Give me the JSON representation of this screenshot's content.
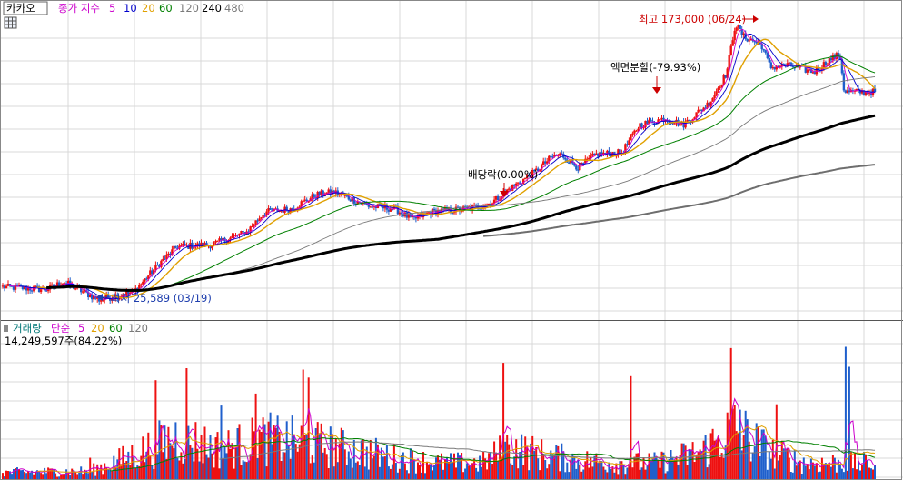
{
  "header": {
    "stock_name": "카카오",
    "indicator_label": "종가 지수",
    "ma_periods": [
      "5",
      "10",
      "20",
      "60",
      "120",
      "240",
      "480"
    ],
    "ma_colors": [
      "#cc00cc",
      "#0000cc",
      "#e0a000",
      "#008000",
      "#7a7a7a",
      "#000000",
      "#6e6e6e"
    ]
  },
  "volume_header": {
    "label": "거래량",
    "indicator_label": "단순",
    "ma_periods": [
      "5",
      "20",
      "60",
      "120"
    ],
    "ma_colors": [
      "#cc00cc",
      "#e0a000",
      "#008000",
      "#7a7a7a"
    ],
    "volume_text": "14,249,597주(84.22%)"
  },
  "annotations": {
    "high": "최고 173,000 (06/24)",
    "low": "최저 25,589 (03/19)",
    "split": "액면분할(-79.93%)",
    "dividend": "배당락(0.00%)"
  },
  "colors": {
    "up": "#ee1111",
    "down": "#1f5fcc",
    "grid": "#d9d9d9",
    "annotation_high": "#cc0000",
    "annotation_low": "#1f3fae"
  },
  "chart_data": {
    "type": "candlestick",
    "panels": [
      "price",
      "volume"
    ],
    "price_scale": {
      "log": true,
      "ylim": [
        24000,
        180000
      ]
    },
    "low_point": {
      "value": 25589,
      "date": "03/19"
    },
    "high_point": {
      "value": 173000,
      "date": "06/24"
    },
    "price_path": [
      [
        0,
        28000
      ],
      [
        0.05,
        27500
      ],
      [
        0.07,
        29000
      ],
      [
        0.11,
        25589
      ],
      [
        0.15,
        27000
      ],
      [
        0.18,
        33000
      ],
      [
        0.2,
        37000
      ],
      [
        0.24,
        37500
      ],
      [
        0.28,
        41000
      ],
      [
        0.3,
        47000
      ],
      [
        0.33,
        48000
      ],
      [
        0.36,
        53000
      ],
      [
        0.38,
        54000
      ],
      [
        0.42,
        49000
      ],
      [
        0.45,
        48000
      ],
      [
        0.47,
        44500
      ],
      [
        0.49,
        47000
      ],
      [
        0.53,
        48000
      ],
      [
        0.56,
        50000
      ],
      [
        0.58,
        55000
      ],
      [
        0.61,
        62000
      ],
      [
        0.63,
        69000
      ],
      [
        0.64,
        70000
      ],
      [
        0.66,
        64000
      ],
      [
        0.68,
        70000
      ],
      [
        0.71,
        71000
      ],
      [
        0.73,
        86000
      ],
      [
        0.76,
        90000
      ],
      [
        0.78,
        86000
      ],
      [
        0.81,
        100000
      ],
      [
        0.83,
        123000
      ],
      [
        0.84,
        173000
      ],
      [
        0.85,
        158000
      ],
      [
        0.87,
        150000
      ],
      [
        0.88,
        128000
      ],
      [
        0.9,
        130000
      ],
      [
        0.93,
        124000
      ],
      [
        0.95,
        136000
      ],
      [
        0.96,
        140000
      ],
      [
        0.965,
        108000
      ]
    ],
    "volume_profile": [
      [
        0,
        0.05
      ],
      [
        0.1,
        0.06
      ],
      [
        0.15,
        0.18
      ],
      [
        0.2,
        0.32
      ],
      [
        0.25,
        0.22
      ],
      [
        0.3,
        0.3
      ],
      [
        0.35,
        0.27
      ],
      [
        0.4,
        0.22
      ],
      [
        0.45,
        0.16
      ],
      [
        0.5,
        0.12
      ],
      [
        0.55,
        0.12
      ],
      [
        0.58,
        0.24
      ],
      [
        0.62,
        0.18
      ],
      [
        0.66,
        0.14
      ],
      [
        0.7,
        0.12
      ],
      [
        0.75,
        0.12
      ],
      [
        0.8,
        0.2
      ],
      [
        0.84,
        0.38
      ],
      [
        0.88,
        0.2
      ],
      [
        0.92,
        0.12
      ],
      [
        0.96,
        0.12
      ]
    ],
    "volume_spikes": [
      [
        0.1,
        0.16
      ],
      [
        0.176,
        0.74
      ],
      [
        0.21,
        0.83
      ],
      [
        0.25,
        0.55
      ],
      [
        0.29,
        0.64
      ],
      [
        0.345,
        0.82
      ],
      [
        0.35,
        0.76
      ],
      [
        0.575,
        0.87
      ],
      [
        0.72,
        0.77
      ],
      [
        0.835,
        0.98
      ],
      [
        0.845,
        0.52
      ],
      [
        0.888,
        0.56
      ],
      [
        0.966,
        0.99
      ],
      [
        0.97,
        0.84
      ]
    ]
  }
}
